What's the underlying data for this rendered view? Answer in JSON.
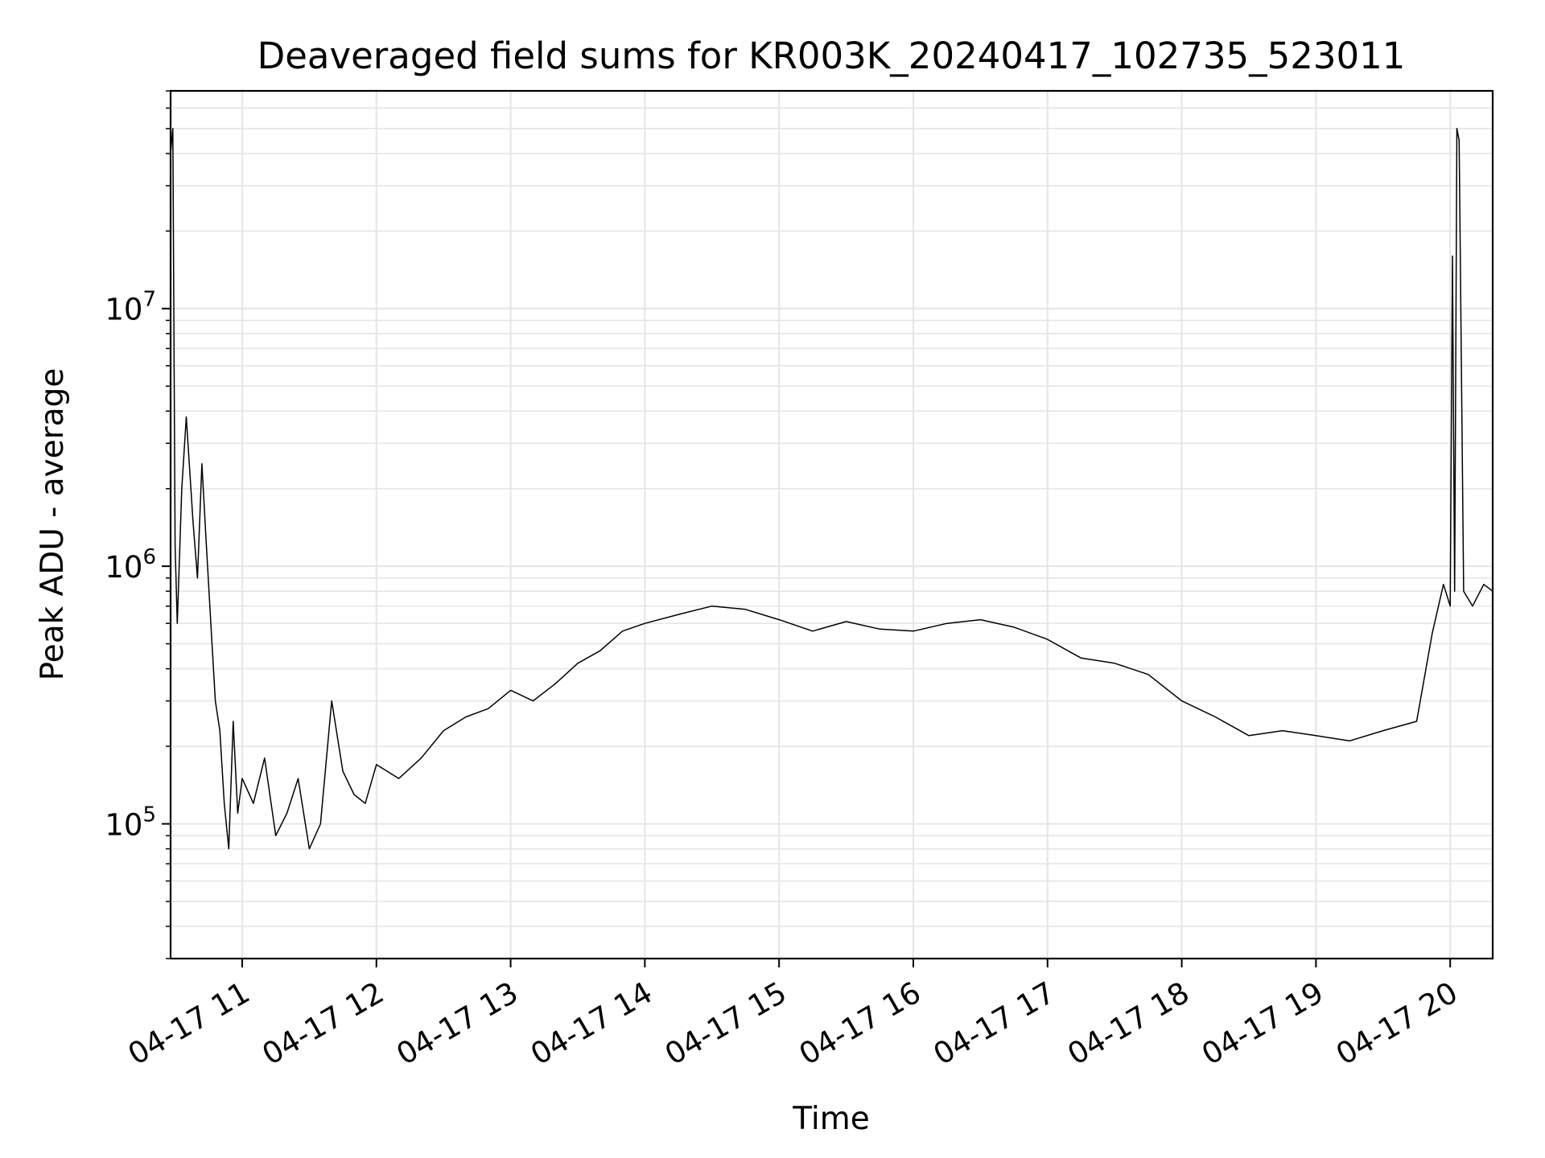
{
  "chart_data": {
    "type": "line",
    "title": "Deaveraged field sums for KR003K_20240417_102735_523011",
    "xlabel": "Time",
    "ylabel": "Peak ADU - average",
    "yscale": "log",
    "ylim": [
      30000,
      70000000
    ],
    "xlim": [
      "2024-04-17 10:28",
      "2024-04-17 20:19"
    ],
    "grid": true,
    "line_color": "#000000",
    "grid_color": "#e5e5e5",
    "x_ticks": [
      {
        "value": "2024-04-17 11:00",
        "label": "04-17 11"
      },
      {
        "value": "2024-04-17 12:00",
        "label": "04-17 12"
      },
      {
        "value": "2024-04-17 13:00",
        "label": "04-17 13"
      },
      {
        "value": "2024-04-17 14:00",
        "label": "04-17 14"
      },
      {
        "value": "2024-04-17 15:00",
        "label": "04-17 15"
      },
      {
        "value": "2024-04-17 16:00",
        "label": "04-17 16"
      },
      {
        "value": "2024-04-17 17:00",
        "label": "04-17 17"
      },
      {
        "value": "2024-04-17 18:00",
        "label": "04-17 18"
      },
      {
        "value": "2024-04-17 19:00",
        "label": "04-17 19"
      },
      {
        "value": "2024-04-17 20:00",
        "label": "04-17 20"
      }
    ],
    "y_ticks": [
      {
        "value": 100000,
        "base": "10",
        "exp": "5"
      },
      {
        "value": 1000000,
        "base": "10",
        "exp": "6"
      },
      {
        "value": 10000000,
        "base": "10",
        "exp": "7"
      }
    ],
    "series": [
      {
        "x": [
          "2024-04-17 10:28",
          "2024-04-17 10:29",
          "2024-04-17 10:30",
          "2024-04-17 10:31",
          "2024-04-17 10:33",
          "2024-04-17 10:35",
          "2024-04-17 10:38",
          "2024-04-17 10:40",
          "2024-04-17 10:42",
          "2024-04-17 10:44",
          "2024-04-17 10:46",
          "2024-04-17 10:48",
          "2024-04-17 10:50",
          "2024-04-17 10:52",
          "2024-04-17 10:54",
          "2024-04-17 10:56",
          "2024-04-17 10:58",
          "2024-04-17 11:00",
          "2024-04-17 11:05",
          "2024-04-17 11:10",
          "2024-04-17 11:15",
          "2024-04-17 11:20",
          "2024-04-17 11:25",
          "2024-04-17 11:30",
          "2024-04-17 11:35",
          "2024-04-17 11:40",
          "2024-04-17 11:45",
          "2024-04-17 11:50",
          "2024-04-17 11:55",
          "2024-04-17 12:00",
          "2024-04-17 12:10",
          "2024-04-17 12:20",
          "2024-04-17 12:30",
          "2024-04-17 12:40",
          "2024-04-17 12:50",
          "2024-04-17 13:00",
          "2024-04-17 13:10",
          "2024-04-17 13:20",
          "2024-04-17 13:30",
          "2024-04-17 13:40",
          "2024-04-17 13:50",
          "2024-04-17 14:00",
          "2024-04-17 14:15",
          "2024-04-17 14:30",
          "2024-04-17 14:45",
          "2024-04-17 15:00",
          "2024-04-17 15:15",
          "2024-04-17 15:30",
          "2024-04-17 15:45",
          "2024-04-17 16:00",
          "2024-04-17 16:15",
          "2024-04-17 16:30",
          "2024-04-17 16:45",
          "2024-04-17 17:00",
          "2024-04-17 17:15",
          "2024-04-17 17:30",
          "2024-04-17 17:45",
          "2024-04-17 18:00",
          "2024-04-17 18:15",
          "2024-04-17 18:30",
          "2024-04-17 18:45",
          "2024-04-17 19:00",
          "2024-04-17 19:15",
          "2024-04-17 19:30",
          "2024-04-17 19:45",
          "2024-04-17 19:52",
          "2024-04-17 19:57",
          "2024-04-17 20:00",
          "2024-04-17 20:01",
          "2024-04-17 20:02",
          "2024-04-17 20:03",
          "2024-04-17 20:04",
          "2024-04-17 20:06",
          "2024-04-17 20:10",
          "2024-04-17 20:15",
          "2024-04-17 20:19"
        ],
        "y": [
          40000000,
          50000000,
          1200000,
          600000,
          2000000,
          3800000,
          1500000,
          900000,
          2500000,
          1200000,
          600000,
          300000,
          230000,
          120000,
          80000,
          250000,
          110000,
          150000,
          120000,
          180000,
          90000,
          110000,
          150000,
          80000,
          100000,
          300000,
          160000,
          130000,
          120000,
          170000,
          150000,
          180000,
          230000,
          260000,
          280000,
          330000,
          300000,
          350000,
          420000,
          470000,
          560000,
          600000,
          650000,
          700000,
          680000,
          620000,
          560000,
          610000,
          570000,
          560000,
          600000,
          620000,
          580000,
          520000,
          440000,
          420000,
          380000,
          300000,
          260000,
          220000,
          230000,
          220000,
          210000,
          230000,
          250000,
          550000,
          850000,
          700000,
          16000000,
          800000,
          50000000,
          45000000,
          800000,
          700000,
          850000,
          800000
        ]
      }
    ]
  }
}
